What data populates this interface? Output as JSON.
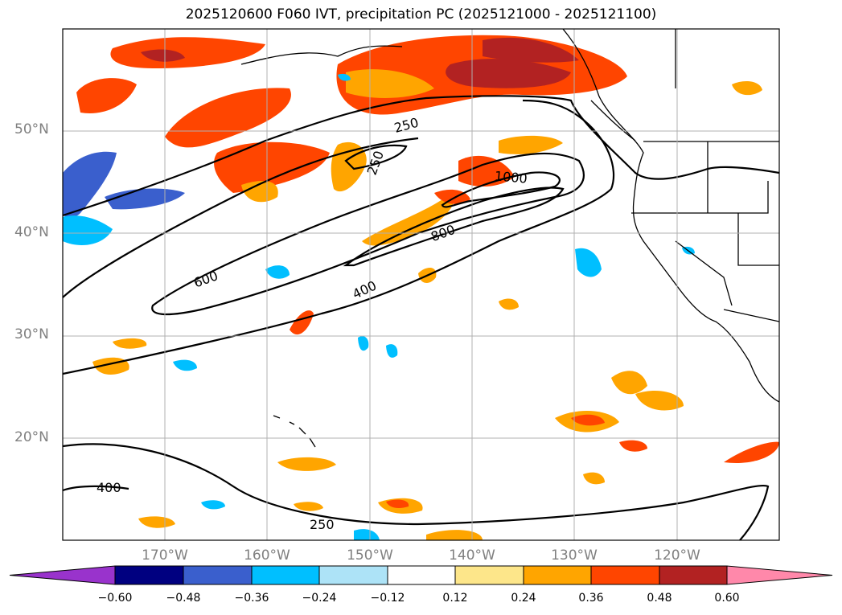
{
  "title": "2025120600 F060 IVT, precipitation PC (2025121000 - 2025121100)",
  "lat_labels": [
    "50°N",
    "40°N",
    "30°N",
    "20°N"
  ],
  "lon_labels": [
    "170°W",
    "160°W",
    "150°W",
    "140°W",
    "130°W",
    "120°W"
  ],
  "contour_labels": [
    "250",
    "250",
    "1000",
    "800",
    "600",
    "400",
    "400",
    "250"
  ],
  "colorbar": {
    "ticks": [
      "−0.60",
      "−0.48",
      "−0.36",
      "−0.24",
      "−0.12",
      "0.12",
      "0.24",
      "0.36",
      "0.48",
      "0.60"
    ],
    "colors": [
      "#9933cc",
      "#000080",
      "#3a5fcd",
      "#00bfff",
      "#ade3f7",
      "#ffffff",
      "#fde68a",
      "#ffa500",
      "#ff4500",
      "#b22222",
      "#ff88aa"
    ]
  }
}
